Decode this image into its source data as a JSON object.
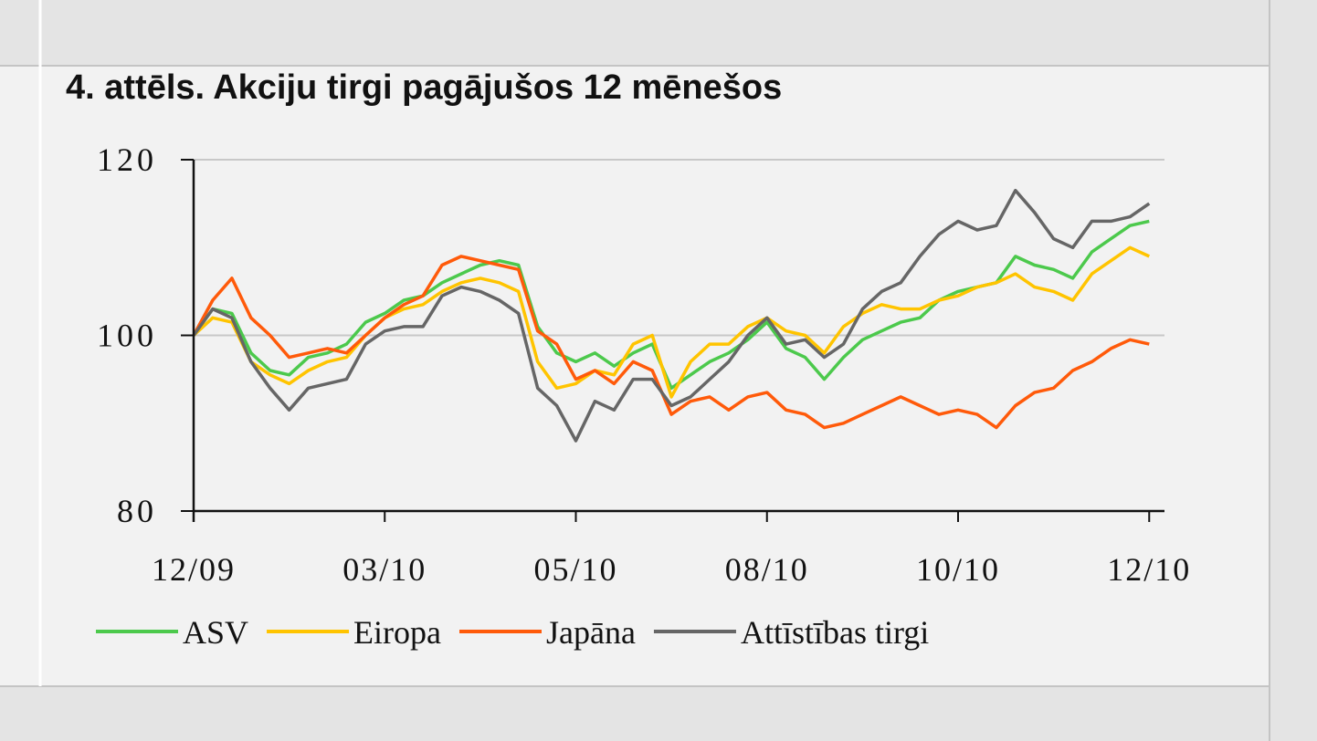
{
  "chart_data": {
    "type": "line",
    "title": "4. attēls. Akciju tirgi pagājušos 12 mēnešos",
    "x": [
      0,
      1,
      2,
      3,
      4,
      5,
      6,
      7,
      8,
      9,
      10,
      11,
      12,
      13,
      14,
      15,
      16,
      17,
      18,
      19,
      20,
      21,
      22,
      23,
      24,
      25,
      26,
      27,
      28,
      29,
      30,
      31,
      32,
      33,
      34,
      35,
      36,
      37,
      38,
      39,
      40,
      41,
      42,
      43,
      44,
      45,
      46,
      47,
      48,
      49,
      50
    ],
    "xlim": [
      0,
      50.8
    ],
    "xticks": [
      {
        "value": 0,
        "label": "12/09"
      },
      {
        "value": 10,
        "label": "03/10"
      },
      {
        "value": 20,
        "label": "05/10"
      },
      {
        "value": 30,
        "label": "08/10"
      },
      {
        "value": 40,
        "label": "10/10"
      },
      {
        "value": 50,
        "label": "12/10"
      }
    ],
    "ylim": [
      80,
      120
    ],
    "yticks": [
      80,
      100,
      120
    ],
    "grid": true,
    "legend": "bottom",
    "series": [
      {
        "name": "ASV",
        "color": "#4cc94c",
        "values": [
          100,
          103,
          102.5,
          98,
          96,
          95.5,
          97.5,
          98,
          99,
          101.5,
          102.5,
          104,
          104.5,
          106,
          107,
          108,
          108.5,
          108,
          101,
          98,
          97,
          98,
          96.5,
          98,
          99,
          94,
          95.5,
          97,
          98,
          99.5,
          101.5,
          98.5,
          97.5,
          95,
          97.5,
          99.5,
          100.5,
          101.5,
          102,
          104,
          105,
          105.5,
          106,
          109,
          108,
          107.5,
          106.5,
          109.5,
          111,
          112.5,
          113
        ]
      },
      {
        "name": "Eiropa",
        "color": "#ffc400",
        "values": [
          100,
          102,
          101.5,
          97,
          95.5,
          94.5,
          96,
          97,
          97.5,
          100,
          102,
          103,
          103.5,
          105,
          106,
          106.5,
          106,
          105,
          97,
          94,
          94.5,
          96,
          95.5,
          99,
          100,
          93,
          97,
          99,
          99,
          101,
          102,
          100.5,
          100,
          98,
          101,
          102.5,
          103.5,
          103,
          103,
          104,
          104.5,
          105.5,
          106,
          107,
          105.5,
          105,
          104,
          107,
          108.5,
          110,
          109
        ]
      },
      {
        "name": "Japāna",
        "color": "#ff5a0a",
        "values": [
          100,
          104,
          106.5,
          102,
          100,
          97.5,
          98,
          98.5,
          98,
          100,
          102,
          103.5,
          104.5,
          108,
          109,
          108.5,
          108,
          107.5,
          100.5,
          99,
          95,
          96,
          94.5,
          97,
          96,
          91,
          92.5,
          93,
          91.5,
          93,
          93.5,
          91.5,
          91,
          89.5,
          90,
          91,
          92,
          93,
          92,
          91,
          91.5,
          91,
          89.5,
          92,
          93.5,
          94,
          96,
          97,
          98.5,
          99.5,
          99
        ]
      },
      {
        "name": "Attīstības tirgi",
        "color": "#666666",
        "values": [
          100,
          103,
          102,
          97,
          94,
          91.5,
          94,
          94.5,
          95,
          99,
          100.5,
          101,
          101,
          104.5,
          105.5,
          105,
          104,
          102.5,
          94,
          92,
          88,
          92.5,
          91.5,
          95,
          95,
          92,
          93,
          95,
          97,
          100,
          102,
          99,
          99.5,
          97.5,
          99,
          103,
          105,
          106,
          109,
          111.5,
          113,
          112,
          112.5,
          116.5,
          114,
          111,
          110,
          113,
          113,
          113.5,
          115
        ]
      }
    ]
  }
}
